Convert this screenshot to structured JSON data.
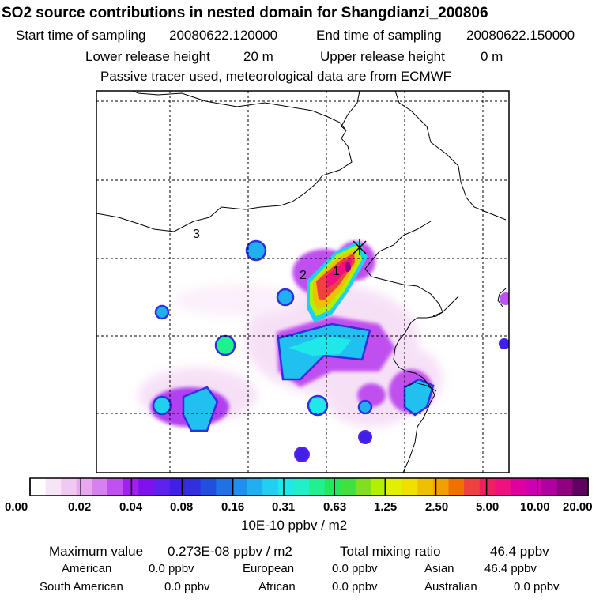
{
  "header": {
    "title": "SO2 source contributions in nested domain for Shangdianzi_200806",
    "start_label": "Start time of sampling",
    "start_value": "20080622.120000",
    "end_label": "End time of sampling",
    "end_value": "20080622.150000",
    "lower_label": "Lower release height",
    "lower_value": "20 m",
    "upper_label": "Upper release height",
    "upper_value": "0 m",
    "note": "Passive tracer used, meteorological data are from ECMWF"
  },
  "map": {
    "region_labels": [
      "1",
      "2",
      "3"
    ],
    "station_marker": "station-cross"
  },
  "colorbar": {
    "labels": [
      "0.00",
      "0.02",
      "0.04",
      "0.08",
      "0.16",
      "0.31",
      "0.63",
      "1.25",
      "2.50",
      "5.00",
      "10.00",
      "20.00"
    ],
    "units": "10E-10 ppbv / m2",
    "colors": [
      "#ffffff",
      "#f8e4f8",
      "#f0c8f0",
      "#e8a8f0",
      "#d880f0",
      "#c050f0",
      "#a020f0",
      "#8010f0",
      "#6020f0",
      "#4020e8",
      "#3030e0",
      "#2050e0",
      "#2070e8",
      "#2090f0",
      "#20b0f0",
      "#20d0f0",
      "#20e8e8",
      "#20f0c8",
      "#20f090",
      "#20e860",
      "#40e040",
      "#80e020",
      "#b0f000",
      "#e0f000",
      "#f0e000",
      "#f0c000",
      "#f0a000",
      "#f07000",
      "#f04040",
      "#f02060",
      "#f01080",
      "#e000a0",
      "#d000b0",
      "#b000a0",
      "#900080",
      "#600060"
    ]
  },
  "summary": {
    "max_label": "Maximum value",
    "max_value": "0.273E-08 ppbv / m2",
    "total_label": "Total mixing ratio",
    "total_value": "46.4 ppbv",
    "rows": [
      [
        {
          "k": "American",
          "v": "0.0 ppbv"
        },
        {
          "k": "European",
          "v": "0.0 ppbv"
        },
        {
          "k": "Asian",
          "v": "46.4 ppbv"
        }
      ],
      [
        {
          "k": "South American",
          "v": "0.0 ppbv"
        },
        {
          "k": "African",
          "v": "0.0 ppbv"
        },
        {
          "k": "Australian",
          "v": "0.0 ppbv"
        }
      ]
    ]
  }
}
